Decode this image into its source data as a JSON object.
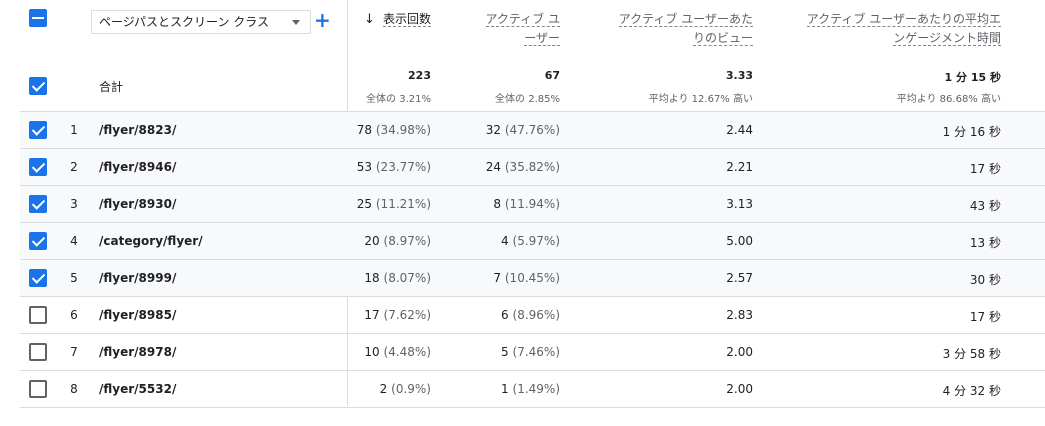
{
  "dimension_selector": {
    "label": "ページパスとスクリーン クラス"
  },
  "columns": [
    {
      "label": "表示回数",
      "sorted": true
    },
    {
      "label_lines": [
        "アクティブ ユ",
        "ーザー"
      ]
    },
    {
      "label_lines": [
        "アクティブ ユーザーあた",
        "りのビュー"
      ]
    },
    {
      "label_lines": [
        "アクティブ ユーザーあたりの平均エ",
        "ンゲージメント時間"
      ]
    }
  ],
  "totals": {
    "label": "合計",
    "views": "223",
    "views_sub": "全体の 3.21%",
    "users": "67",
    "users_sub": "全体の 2.85%",
    "vpu": "3.33",
    "vpu_sub": "平均より 12.67% 高い",
    "eng": "1 分 15 秒",
    "eng_sub": "平均より 86.68% 高い"
  },
  "rows": [
    {
      "rank": "1",
      "path": "/flyer/8823/",
      "views": "78",
      "views_pct": "(34.98%)",
      "users": "32",
      "users_pct": "(47.76%)",
      "vpu": "2.44",
      "eng": "1 分 16 秒",
      "checked": true
    },
    {
      "rank": "2",
      "path": "/flyer/8946/",
      "views": "53",
      "views_pct": "(23.77%)",
      "users": "24",
      "users_pct": "(35.82%)",
      "vpu": "2.21",
      "eng": "17 秒",
      "checked": true
    },
    {
      "rank": "3",
      "path": "/flyer/8930/",
      "views": "25",
      "views_pct": "(11.21%)",
      "users": "8",
      "users_pct": "(11.94%)",
      "vpu": "3.13",
      "eng": "43 秒",
      "checked": true
    },
    {
      "rank": "4",
      "path": "/category/flyer/",
      "views": "20",
      "views_pct": "(8.97%)",
      "users": "4",
      "users_pct": "(5.97%)",
      "vpu": "5.00",
      "eng": "13 秒",
      "checked": true
    },
    {
      "rank": "5",
      "path": "/flyer/8999/",
      "views": "18",
      "views_pct": "(8.07%)",
      "users": "7",
      "users_pct": "(10.45%)",
      "vpu": "2.57",
      "eng": "30 秒",
      "checked": true
    },
    {
      "rank": "6",
      "path": "/flyer/8985/",
      "views": "17",
      "views_pct": "(7.62%)",
      "users": "6",
      "users_pct": "(8.96%)",
      "vpu": "2.83",
      "eng": "17 秒",
      "checked": false
    },
    {
      "rank": "7",
      "path": "/flyer/8978/",
      "views": "10",
      "views_pct": "(4.48%)",
      "users": "5",
      "users_pct": "(7.46%)",
      "vpu": "2.00",
      "eng": "3 分 58 秒",
      "checked": false
    },
    {
      "rank": "8",
      "path": "/flyer/5532/",
      "views": "2",
      "views_pct": "(0.9%)",
      "users": "1",
      "users_pct": "(1.49%)",
      "vpu": "2.00",
      "eng": "4 分 32 秒",
      "checked": false
    }
  ],
  "colors": {
    "accent": "#1a73e8",
    "row_highlight": "#f8f9fa",
    "divider": "#dadce0"
  },
  "icons": {
    "sort": "arrow-down-icon",
    "add": "plus-icon",
    "dropdown": "caret-down-icon"
  }
}
